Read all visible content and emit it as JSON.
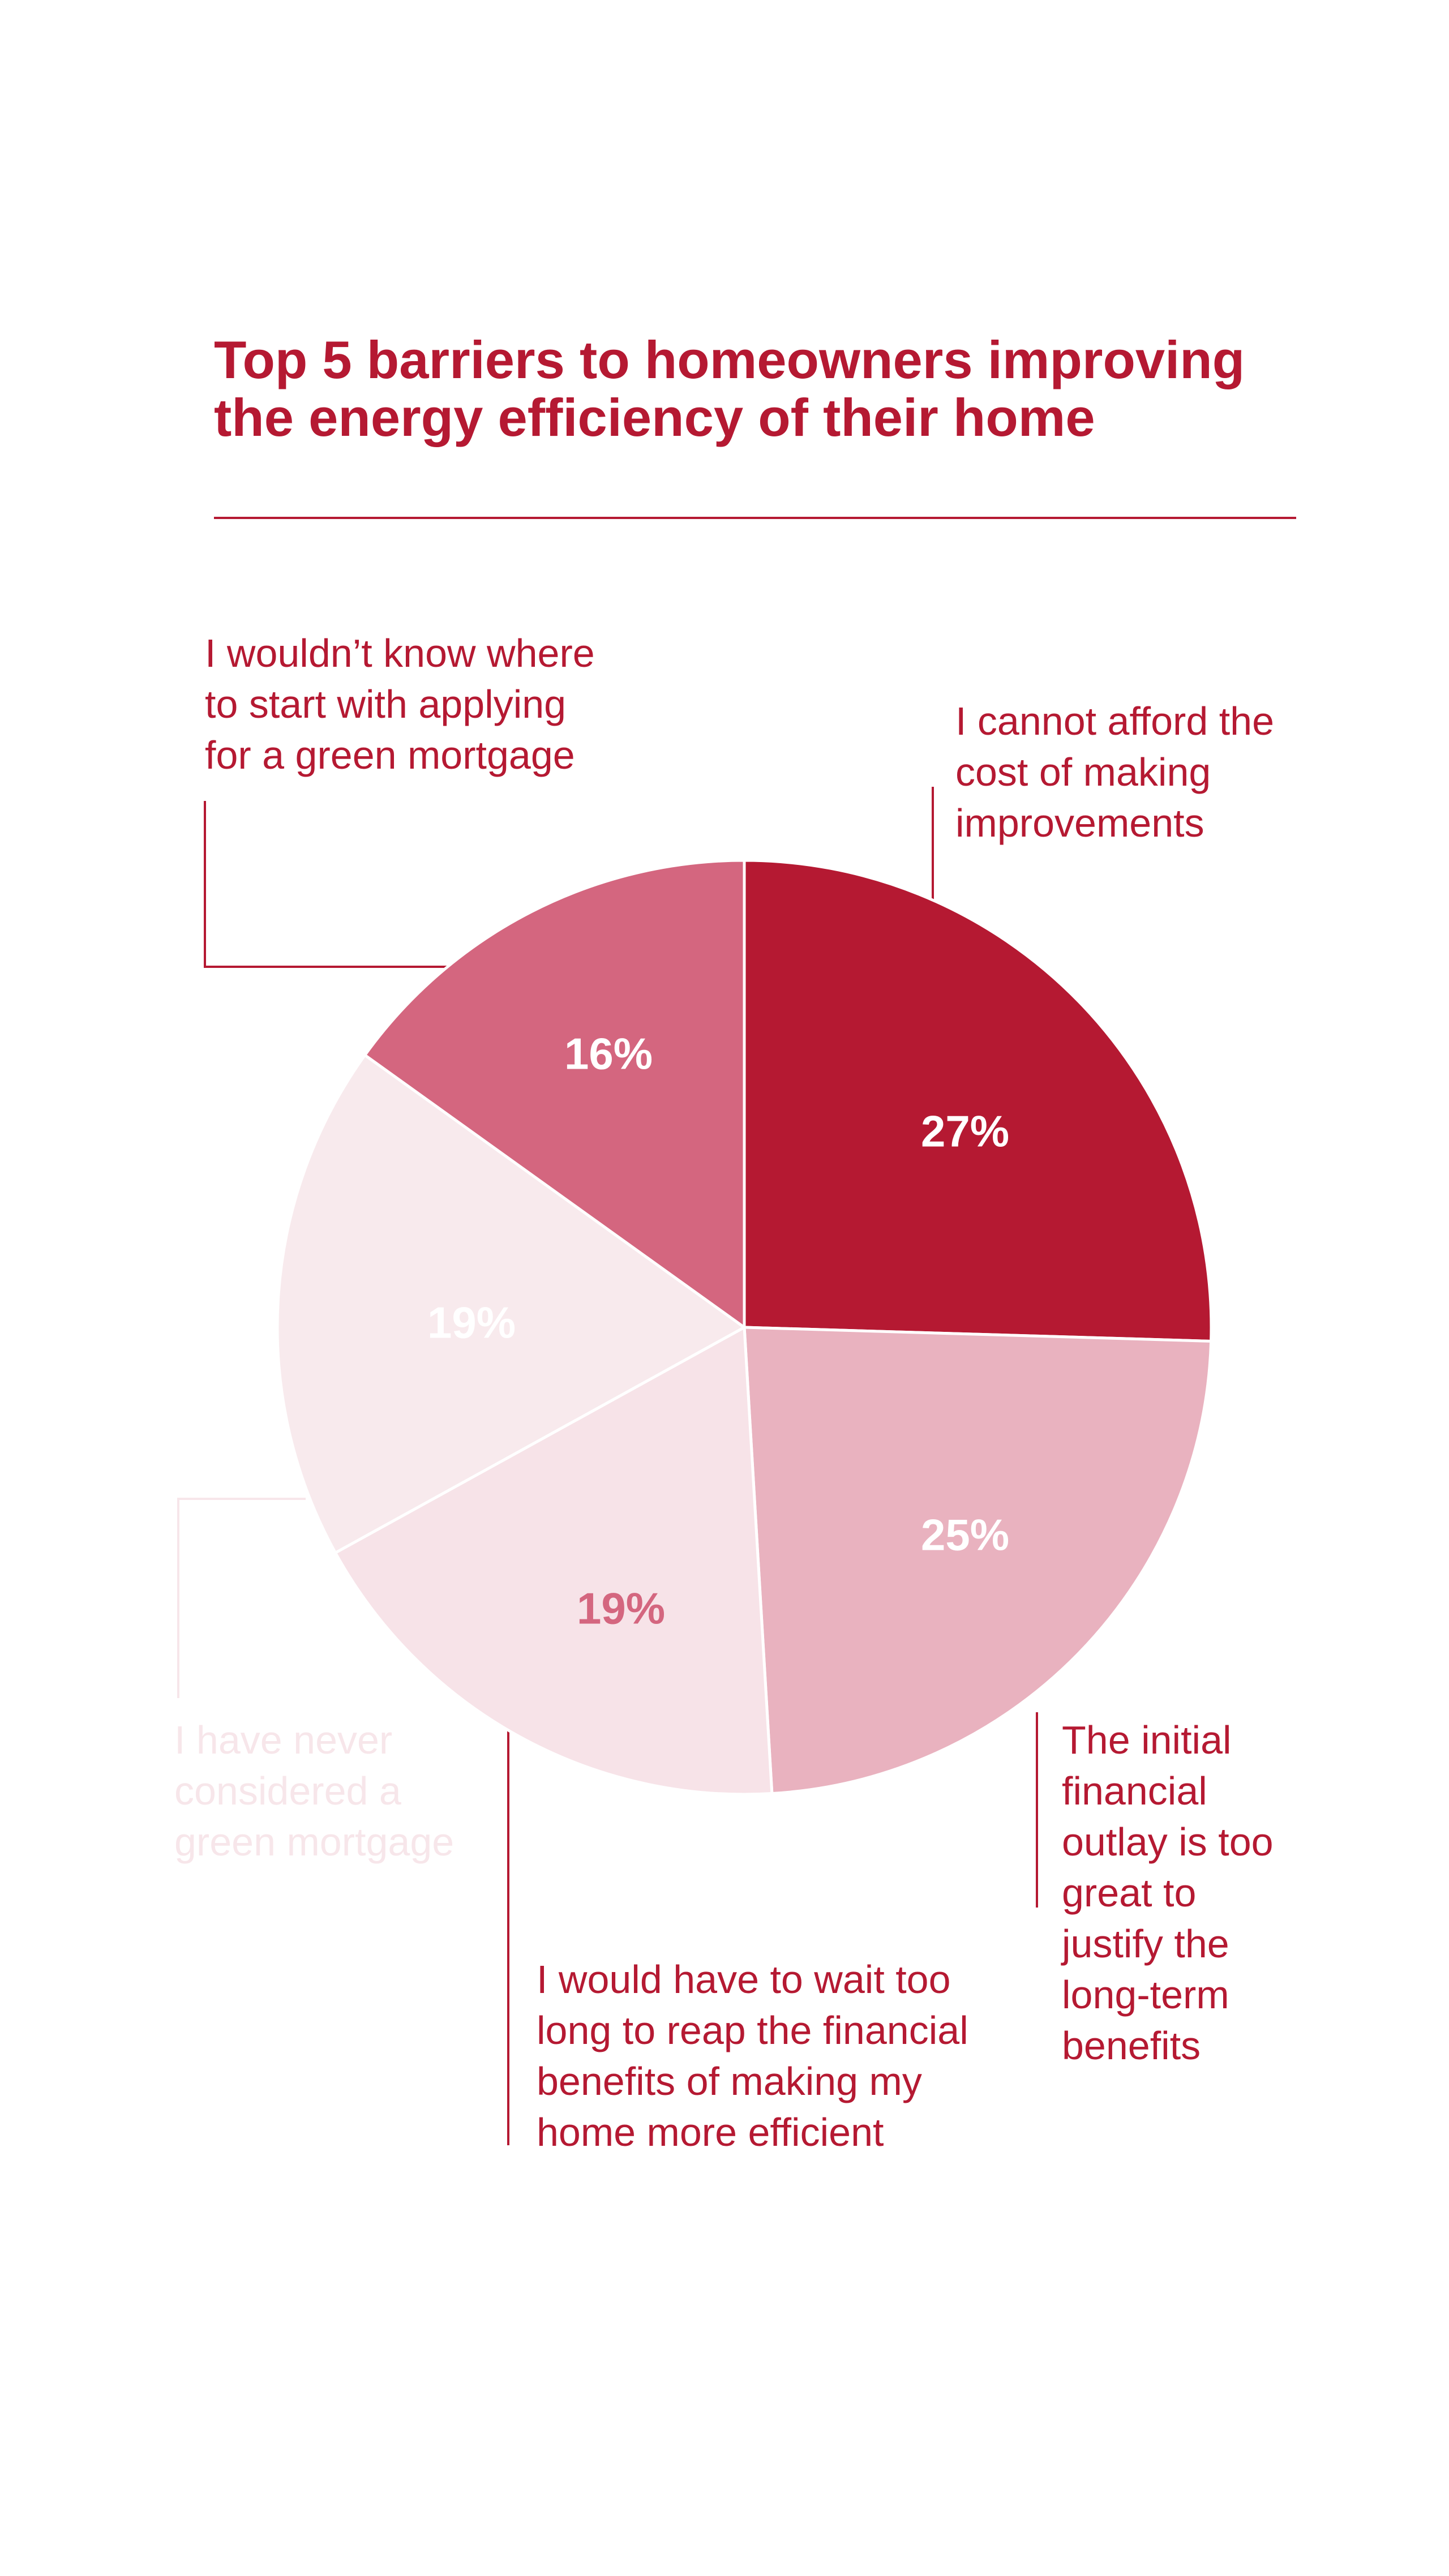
{
  "chart_data": {
    "type": "pie",
    "title_lines": [
      "Top 5 barriers to homeowners improving",
      "the energy efficiency of their home"
    ],
    "slices": [
      {
        "value": 27,
        "label": "27%",
        "color": "#b51932",
        "label_color": "#ffffff",
        "category_lines": [
          "I cannot afford the",
          "cost of making",
          "improvements"
        ],
        "category_color": "#b51932"
      },
      {
        "value": 25,
        "label": "25%",
        "color": "#e9b2bf",
        "label_color": "#ffffff",
        "category_lines": [
          "The initial",
          "financial",
          "outlay is too",
          "great to",
          "justify the",
          "long-term",
          "benefits"
        ],
        "category_color": "#b51932"
      },
      {
        "value": 19,
        "label": "19%",
        "color": "#f7e3e8",
        "label_color": "#d4667f",
        "category_lines": [
          "I would have to wait too",
          "long to reap the financial",
          "benefits of making my",
          "home more efficient"
        ],
        "category_color": "#b51932"
      },
      {
        "value": 19,
        "label": "19%",
        "color": "#f8eaed",
        "label_color": "#ffffff",
        "category_lines": [
          "I have never",
          "considered a",
          "green mortgage"
        ],
        "category_color": "#f7e6ea"
      },
      {
        "value": 16,
        "label": "16%",
        "color": "#d4667f",
        "label_color": "#ffffff",
        "category_lines": [
          "I wouldn’t know where",
          "to start with applying",
          "for a green mortgage"
        ],
        "category_color": "#b51932"
      }
    ],
    "colors": {
      "title": "#b51932",
      "rule": "#b51932",
      "slice_border": "#ffffff"
    }
  }
}
